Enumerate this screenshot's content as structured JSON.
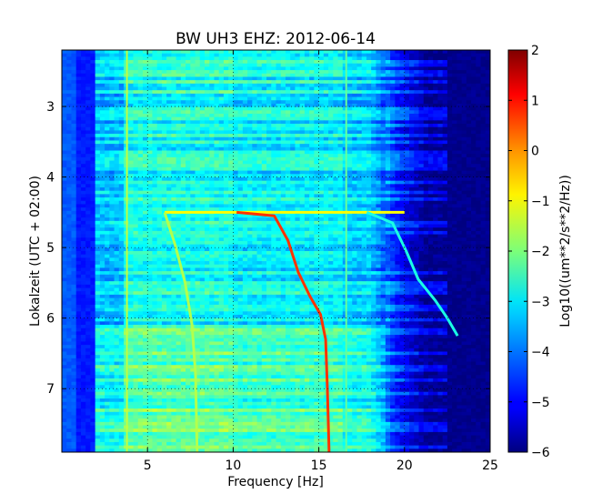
{
  "chart_data": {
    "type": "heatmap",
    "title": "BW UH3 EHZ: 2012-06-14",
    "xlabel": "Frequency [Hz]",
    "ylabel": "Lokalzeit (UTC + 02:00)",
    "colorbar_label": "Log10((um**2/s**2/Hz))",
    "xlim": [
      0,
      25
    ],
    "ylim": [
      2.2,
      7.9
    ],
    "y_inverted": true,
    "clim": [
      -6,
      2
    ],
    "colormap": "jet",
    "grid": true,
    "xticks": [
      5,
      10,
      15,
      20,
      25
    ],
    "xtick_labels": [
      "5",
      "10",
      "15",
      "20",
      "25"
    ],
    "yticks": [
      3,
      4,
      5,
      6,
      7
    ],
    "ytick_labels": [
      "3",
      "4",
      "5",
      "6",
      "7"
    ],
    "cticks": [
      -6,
      -5,
      -4,
      -3,
      -2,
      -1,
      0,
      1,
      2
    ],
    "ctick_labels": [
      "−6",
      "−5",
      "−4",
      "−3",
      "−2",
      "−1",
      "0",
      "1",
      "2"
    ],
    "features": [
      {
        "type": "vertical_line",
        "freq": 3.8,
        "level": -1.5
      },
      {
        "type": "vertical_line",
        "freq": 16.6,
        "level": -2.2
      },
      {
        "type": "horizontal_band",
        "time": 4.5,
        "from_freq": 6,
        "to_freq": 20,
        "level": -1
      },
      {
        "type": "sweep",
        "level": 0.6,
        "points": [
          [
            10.2,
            4.5
          ],
          [
            12.4,
            4.55
          ],
          [
            13.2,
            4.9
          ],
          [
            13.8,
            5.35
          ],
          [
            14.5,
            5.7
          ],
          [
            15.1,
            5.95
          ],
          [
            15.4,
            6.3
          ],
          [
            15.5,
            7.0
          ],
          [
            15.6,
            7.9
          ]
        ]
      },
      {
        "type": "sweep",
        "level": -2.8,
        "points": [
          [
            17.8,
            4.5
          ],
          [
            19.3,
            4.65
          ],
          [
            20.1,
            5.05
          ],
          [
            20.8,
            5.45
          ],
          [
            21.8,
            5.75
          ],
          [
            22.5,
            6.0
          ],
          [
            23.1,
            6.25
          ]
        ]
      },
      {
        "type": "sweep",
        "level": -1.6,
        "points": [
          [
            6.0,
            4.5
          ],
          [
            6.6,
            4.95
          ],
          [
            7.2,
            5.5
          ],
          [
            7.6,
            6.1
          ],
          [
            7.8,
            6.8
          ],
          [
            7.9,
            7.9
          ]
        ]
      }
    ]
  }
}
